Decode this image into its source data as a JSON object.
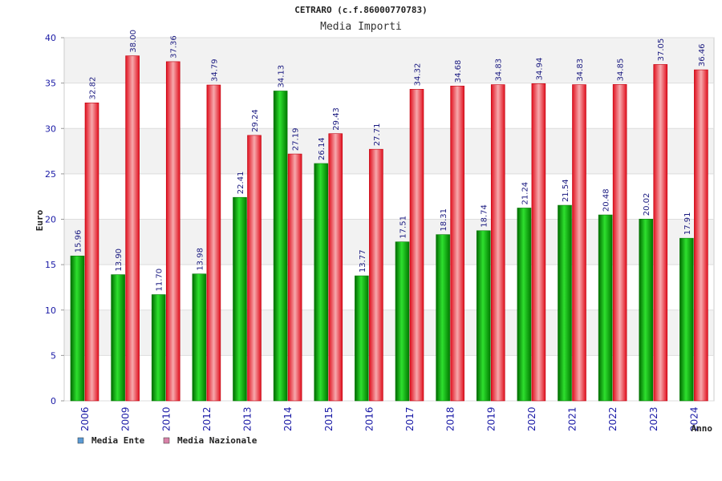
{
  "chart_data": {
    "type": "bar",
    "title": "CETRARO (c.f.86000770783)",
    "subtitle": "Media Importi",
    "xlabel": "Anno",
    "ylabel": "Euro",
    "ylim": [
      0,
      40
    ],
    "yticks": [
      0,
      5,
      10,
      15,
      20,
      25,
      30,
      35,
      40
    ],
    "grid": true,
    "legend_position": "bottom-left",
    "categories": [
      "2006",
      "2009",
      "2010",
      "2012",
      "2013",
      "2014",
      "2015",
      "2016",
      "2017",
      "2018",
      "2019",
      "2020",
      "2021",
      "2022",
      "2023",
      "2024"
    ],
    "series": [
      {
        "name": "Media Ente",
        "legend_color": "#5b9bd5",
        "bar_color": "#13a313",
        "values": [
          15.96,
          13.9,
          11.7,
          13.98,
          22.41,
          34.13,
          26.14,
          13.77,
          17.51,
          18.31,
          18.74,
          21.24,
          21.54,
          20.48,
          20.02,
          17.91
        ],
        "labels": [
          "15.96",
          "13.90",
          "11.70",
          "13.98",
          "22.41",
          "34.13",
          "26.14",
          "13.77",
          "17.51",
          "18.31",
          "18.74",
          "21.24",
          "21.54",
          "20.48",
          "20.02",
          "17.91"
        ]
      },
      {
        "name": "Media Nazionale",
        "legend_color": "#d982a8",
        "bar_color": "#e0101e",
        "values": [
          32.82,
          38.0,
          37.36,
          34.79,
          29.24,
          27.19,
          29.43,
          27.71,
          34.32,
          34.68,
          34.83,
          34.94,
          34.83,
          34.85,
          37.05,
          36.46
        ],
        "labels": [
          "32.82",
          "38.00",
          "37.36",
          "34.79",
          "29.24",
          "27.19",
          "29.43",
          "27.71",
          "34.32",
          "34.68",
          "34.83",
          "34.94",
          "34.83",
          "34.85",
          "37.05",
          "36.46"
        ]
      }
    ]
  }
}
